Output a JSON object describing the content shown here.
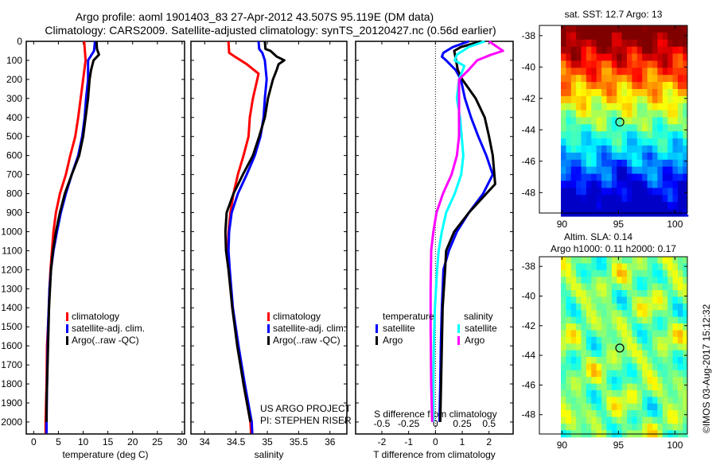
{
  "title": {
    "line1": "Argo profile: aoml 1901403_83 27-Apr-2012 43.507S 95.119E (DM data)",
    "line2": "Climatology: CARS2009. Satellite-adjusted climatology: synTS_20120427.nc (0.56d earlier)"
  },
  "credits": {
    "project": "US ARGO PROJECT",
    "pi": "PI: STEPHEN RISER",
    "imos": "©IMOS 03-Aug-2017 15:12:32"
  },
  "colors": {
    "climatology": "#ff0000",
    "satellite": "#0000ff",
    "argo": "#000000",
    "sal_satellite": "#00ffff",
    "sal_argo": "#ff00ff"
  },
  "chart_data": [
    {
      "type": "line",
      "name": "temperature",
      "xlabel": "temperature (deg C)",
      "ylabel": "",
      "xlim": [
        -1.5,
        30.5
      ],
      "ylim": [
        2063,
        0
      ],
      "xticks": [
        "0",
        "5",
        "10",
        "15",
        "20",
        "25",
        "30"
      ],
      "xtick_values": [
        0,
        5,
        10,
        15,
        20,
        25,
        30
      ],
      "yticks": [
        "0",
        "100",
        "200",
        "300",
        "400",
        "500",
        "600",
        "700",
        "800",
        "900",
        "1000",
        "1100",
        "1200",
        "1300",
        "1400",
        "1500",
        "1600",
        "1700",
        "1800",
        "1900",
        "2000"
      ],
      "ytick_values": [
        0,
        100,
        200,
        300,
        400,
        500,
        600,
        700,
        800,
        900,
        1000,
        1100,
        1200,
        1300,
        1400,
        1500,
        1600,
        1700,
        1800,
        1900,
        2000
      ],
      "legend": "bottom-center",
      "series": [
        {
          "name": "climatology",
          "color": "#ff0000",
          "depth": [
            0,
            100,
            200,
            300,
            400,
            500,
            600,
            700,
            800,
            900,
            1000,
            1100,
            1200,
            1300,
            1400,
            1600,
            1800,
            2000,
            2060
          ],
          "values": [
            10.2,
            10.5,
            10.0,
            9.5,
            9.0,
            8.4,
            7.4,
            6.5,
            5.3,
            4.5,
            4.0,
            3.7,
            3.4,
            3.2,
            3.1,
            2.7,
            2.6,
            2.4,
            2.4
          ]
        },
        {
          "name": "satellite-adj. clim.",
          "color": "#0000ff",
          "depth": [
            0,
            50,
            100,
            200,
            300,
            400,
            500,
            600,
            700,
            800,
            900,
            1000,
            1100,
            1200,
            1300,
            1500,
            1800,
            2000,
            2060
          ],
          "values": [
            12.4,
            12.2,
            11.0,
            11.0,
            10.6,
            10.3,
            9.8,
            9.0,
            7.7,
            6.5,
            5.5,
            4.7,
            4.0,
            3.5,
            3.2,
            2.9,
            2.7,
            2.6,
            2.6
          ]
        },
        {
          "name": "Argo(..raw -QC)",
          "color": "#000000",
          "depth": [
            0,
            40,
            70,
            100,
            150,
            200,
            300,
            400,
            500,
            600,
            700,
            800,
            900,
            1000,
            1100,
            1200,
            1400,
            1600,
            1900,
            2000
          ],
          "values": [
            12.7,
            12.8,
            13.2,
            12.1,
            11.6,
            11.3,
            11.0,
            10.5,
            10.0,
            9.2,
            7.7,
            6.3,
            5.3,
            4.5,
            3.9,
            3.5,
            3.1,
            2.9,
            2.6,
            2.6
          ]
        }
      ]
    },
    {
      "type": "line",
      "name": "salinity",
      "xlabel": "salinity",
      "xlim": [
        33.78,
        36.27
      ],
      "ylim": [
        2063,
        0
      ],
      "xticks": [
        "34",
        "34.5",
        "35",
        "35.5",
        "36"
      ],
      "xtick_values": [
        34,
        34.5,
        35,
        35.5,
        36
      ],
      "legend": "bottom-right",
      "series": [
        {
          "name": "climatology",
          "color": "#ff0000",
          "depth": [
            0,
            60,
            80,
            120,
            170,
            200,
            300,
            400,
            500,
            600,
            700,
            800,
            900,
            1000,
            1100,
            1200,
            1400,
            1600,
            1800,
            2000,
            2060
          ],
          "values": [
            34.38,
            34.39,
            34.48,
            34.67,
            34.86,
            34.84,
            34.77,
            34.72,
            34.7,
            34.62,
            34.53,
            34.46,
            34.41,
            34.38,
            34.37,
            34.39,
            34.44,
            34.53,
            34.62,
            34.73,
            34.74
          ]
        },
        {
          "name": "satellite-adj. clim.",
          "color": "#0000ff",
          "depth": [
            0,
            40,
            60,
            100,
            200,
            300,
            400,
            500,
            600,
            700,
            800,
            900,
            1000,
            1100,
            1200,
            1400,
            1600,
            1800,
            2000,
            2060
          ],
          "values": [
            34.86,
            34.87,
            34.92,
            34.96,
            34.99,
            34.96,
            34.94,
            34.89,
            34.8,
            34.67,
            34.53,
            34.43,
            34.39,
            34.38,
            34.4,
            34.45,
            34.54,
            34.64,
            34.75,
            34.76
          ]
        },
        {
          "name": "Argo(..raw -QC)",
          "color": "#000000",
          "depth": [
            0,
            40,
            50,
            80,
            100,
            120,
            150,
            200,
            300,
            400,
            500,
            600,
            700,
            800,
            900,
            1000,
            1100,
            1200,
            1400,
            1600,
            1800,
            2000
          ],
          "values": [
            34.96,
            34.97,
            35.05,
            35.15,
            35.27,
            35.18,
            35.15,
            35.09,
            35.01,
            34.96,
            34.87,
            34.77,
            34.61,
            34.46,
            34.35,
            34.33,
            34.34,
            34.38,
            34.44,
            34.52,
            34.62,
            34.73
          ]
        }
      ]
    },
    {
      "type": "line",
      "name": "difference",
      "xlabel": "T difference from climatology",
      "xlabel2": "S difference from climatology",
      "xlim": [
        -2.98,
        2.9
      ],
      "xlim_S": [
        -0.745,
        0.725
      ],
      "ylim": [
        2063,
        0
      ],
      "xticks": [
        "-2",
        "-1",
        "0",
        "1",
        "2"
      ],
      "xtick_values": [
        -2,
        -1,
        0,
        1,
        2
      ],
      "xticks_S": [
        "-0.5",
        "-0.25",
        "0",
        "0.25",
        "0.5"
      ],
      "xtick_values_S": [
        -0.5,
        -0.25,
        0,
        0.25,
        0.5
      ],
      "legend_titles": [
        "temperature",
        "salinity"
      ],
      "legend": "bottom-center",
      "series": [
        {
          "name": "satellite",
          "group": "temperature",
          "axis": "T",
          "color": "#0000ff",
          "depth": [
            0,
            30,
            60,
            80,
            100,
            150,
            200,
            300,
            400,
            500,
            600,
            700,
            800,
            900,
            1000,
            1100,
            1200,
            1400,
            1600,
            1800,
            2000
          ],
          "values": [
            1.25,
            0.65,
            0.3,
            0.24,
            0.4,
            0.75,
            0.95,
            1.1,
            1.33,
            1.6,
            1.9,
            2.14,
            1.78,
            1.25,
            0.8,
            0.5,
            0.3,
            0.24,
            0.2,
            0.18,
            0.15
          ]
        },
        {
          "name": "Argo",
          "group": "temperature",
          "axis": "T",
          "color": "#000000",
          "depth": [
            0,
            30,
            50,
            100,
            150,
            200,
            300,
            400,
            500,
            600,
            700,
            750,
            800,
            900,
            1000,
            1100,
            1200,
            1400,
            1600,
            1800,
            2000
          ],
          "values": [
            1.7,
            0.95,
            0.7,
            0.77,
            0.83,
            1.0,
            1.5,
            1.84,
            2.0,
            2.14,
            2.2,
            2.23,
            1.9,
            1.25,
            0.7,
            0.4,
            0.36,
            0.27,
            0.24,
            0.21,
            0.18
          ]
        },
        {
          "name": "satellite",
          "group": "salinity",
          "axis": "S",
          "color": "#00ffff",
          "depth": [
            0,
            30,
            70,
            100,
            130,
            200,
            300,
            400,
            500,
            600,
            700,
            800,
            900,
            1000,
            1100,
            1200,
            1400,
            1600,
            1800,
            2000
          ],
          "values": [
            0.46,
            0.31,
            0.2,
            0.18,
            0.27,
            0.22,
            0.2,
            0.23,
            0.245,
            0.26,
            0.24,
            0.18,
            0.1,
            0.06,
            0.03,
            0.015,
            -0.005,
            -0.015,
            -0.02,
            -0.02
          ]
        },
        {
          "name": "Argo",
          "group": "salinity",
          "axis": "S",
          "color": "#ff00ff",
          "depth": [
            0,
            50,
            70,
            100,
            150,
            200,
            300,
            400,
            500,
            600,
            700,
            800,
            900,
            1000,
            1100,
            1300,
            1500,
            1800,
            2000
          ],
          "values": [
            0.5,
            0.63,
            0.52,
            0.39,
            0.31,
            0.22,
            0.22,
            0.22,
            0.22,
            0.2,
            0.15,
            0.07,
            0.01,
            -0.02,
            -0.04,
            -0.045,
            -0.045,
            -0.04,
            -0.03
          ]
        }
      ]
    },
    {
      "type": "heatmap",
      "name": "sst-map",
      "title": "sat. SST: 12.7 Argo: 13",
      "xlim": [
        88,
        101.1
      ],
      "ylim": [
        -49.3,
        -37.35
      ],
      "xticks": [
        "90",
        "95",
        "100"
      ],
      "xtick_values": [
        90,
        95,
        100
      ],
      "yticks": [
        "-38",
        "-40",
        "-42",
        "-44",
        "-46",
        "-48"
      ],
      "ytick_values": [
        -38,
        -40,
        -42,
        -44,
        -46,
        -48
      ],
      "marker": {
        "lon": 95.119,
        "lat": -43.507
      }
    },
    {
      "type": "heatmap",
      "name": "sla-map",
      "title": "Altim. SLA: 0.14",
      "subtitle": "Argo h1000: 0.11 h2000: 0.17",
      "xlim": [
        88,
        101.1
      ],
      "ylim": [
        -49.3,
        -37.35
      ],
      "xticks": [
        "90",
        "95",
        "100"
      ],
      "xtick_values": [
        90,
        95,
        100
      ],
      "yticks": [
        "-38",
        "-40",
        "-42",
        "-44",
        "-46",
        "-48"
      ],
      "ytick_values": [
        -38,
        -40,
        -42,
        -44,
        -46,
        -48
      ],
      "marker": {
        "lon": 95.119,
        "lat": -43.507
      }
    }
  ]
}
